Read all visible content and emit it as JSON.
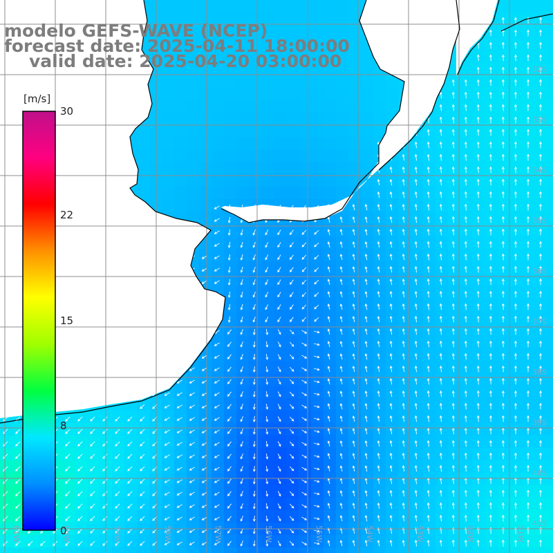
{
  "header": {
    "model_line": "modelo GEFS-WAVE (NCEP)",
    "forecast_line": "forecast date: 2025-04-11 18:00:00",
    "valid_line": "valid date: 2025-04-20 03:00:00"
  },
  "colorbar": {
    "unit": "[m/s]",
    "min": 0,
    "max": 30,
    "tick_labels": [
      "30",
      "22",
      "15",
      "8",
      "0"
    ],
    "tick_values": [
      30,
      22,
      15,
      8,
      0
    ],
    "colors": [
      "#0000ff",
      "#0090ff",
      "#00e8ff",
      "#00ff40",
      "#a0ff00",
      "#ffff00",
      "#ff9000",
      "#ff0000",
      "#ff0080",
      "#c0108a"
    ]
  },
  "map": {
    "variable": "wind speed and direction",
    "lat_labels": [
      "32S",
      "33S",
      "34S",
      "35S",
      "36S",
      "37S",
      "38S",
      "39S",
      "40S",
      "41S"
    ],
    "lon_labels": [
      "61W",
      "60W",
      "59W",
      "58W",
      "57W",
      "56W",
      "55W",
      "54W",
      "53W",
      "52W",
      "51W"
    ],
    "land_color": "#ffffff",
    "grid_color": "#8c8c8c",
    "coast_color": "#000000",
    "arrow_color": "#ffffff"
  }
}
